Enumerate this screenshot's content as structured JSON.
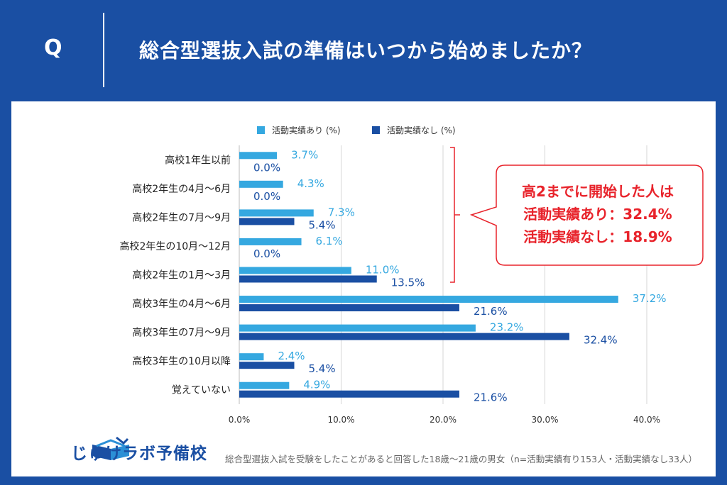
{
  "header": {
    "q_label": "Q",
    "question": "総合型選抜入試の準備はいつから始めましたか？"
  },
  "colors": {
    "header_bg": "#1a4fa3",
    "series1": "#35a8e0",
    "series2": "#1a4fa3",
    "callout": "#e8232b"
  },
  "chart_data": {
    "type": "bar",
    "orientation": "horizontal",
    "categories": [
      "高校1年生以前",
      "高校2年生の4月〜6月",
      "高校2年生の7月〜9月",
      "高校2年生の10月〜12月",
      "高校2年生の1月〜3月",
      "高校3年生の4月〜6月",
      "高校3年生の7月〜9月",
      "高校3年生の10月以降",
      "覚えていない"
    ],
    "series": [
      {
        "name": "活動実績あり (%)",
        "values": [
          3.7,
          4.3,
          7.3,
          6.1,
          11.0,
          37.2,
          23.2,
          2.4,
          4.9
        ],
        "labels": [
          "3.7%",
          "4.3%",
          "7.3%",
          "6.1%",
          "11.0%",
          "37.2%",
          "23.2%",
          "2.4%",
          "4.9%"
        ]
      },
      {
        "name": "活動実績なし (%)",
        "values": [
          0.0,
          0.0,
          5.4,
          0.0,
          13.5,
          21.6,
          32.4,
          5.4,
          21.6
        ],
        "labels": [
          "0.0%",
          "0.0%",
          "5.4%",
          "0.0%",
          "13.5%",
          "21.6%",
          "32.4%",
          "5.4%",
          "21.6%"
        ]
      }
    ],
    "xlim": [
      0,
      40
    ],
    "xticks": [
      "0.0%",
      "10.0%",
      "20.0%",
      "30.0%",
      "40.0%"
    ],
    "grid": true,
    "legend_position": "top"
  },
  "callout": {
    "line1": "高2までに開始した人は",
    "line2": "活動実績あり：32.4%",
    "line3": "活動実績なし：18.9%"
  },
  "footer": {
    "logo_text": "じゅけラボ予備校",
    "note": "総合型選抜入試を受験をしたことがあると回答した18歳〜21歳の男女（n=活動実績有り153人・活動実績なし33人）"
  }
}
